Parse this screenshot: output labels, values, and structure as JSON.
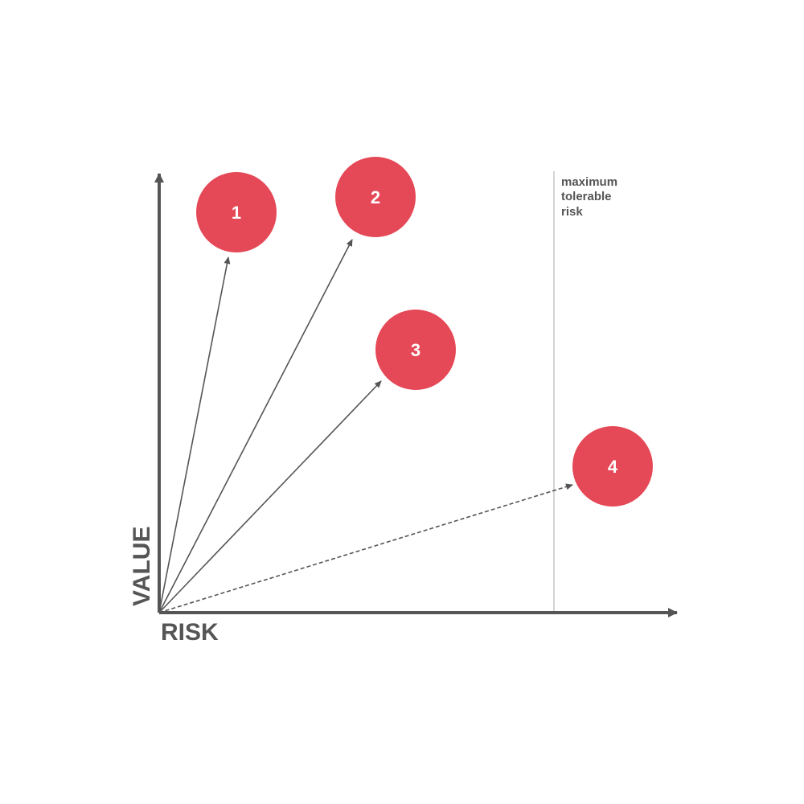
{
  "axes": {
    "x_label": "RISK",
    "y_label": "VALUE"
  },
  "threshold": {
    "label_lines": [
      "maximum",
      "tolerable",
      "risk"
    ]
  },
  "items": [
    {
      "label": "1",
      "dashed": false
    },
    {
      "label": "2",
      "dashed": false
    },
    {
      "label": "3",
      "dashed": false
    },
    {
      "label": "4",
      "dashed": true
    }
  ],
  "colors": {
    "circle": "#e54856",
    "axis": "#555555",
    "threshold_line": "#aaaaaa"
  }
}
